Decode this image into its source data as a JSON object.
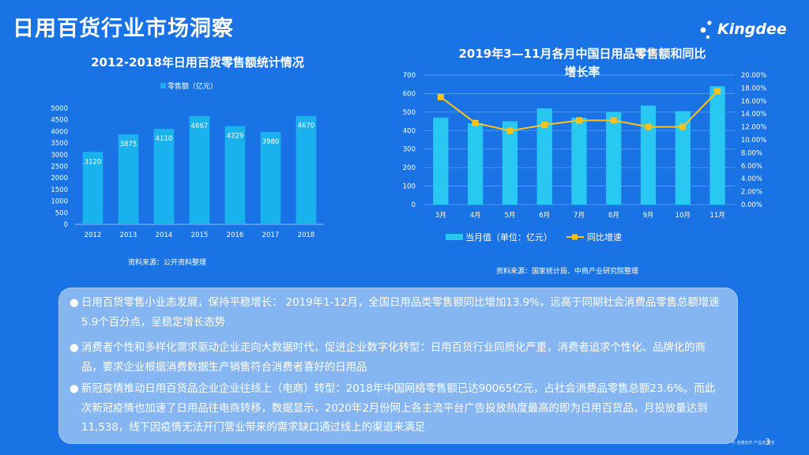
{
  "page": {
    "title": "日用百货行业市场洞察",
    "logo_text": "Kingdee",
    "page_number": "3",
    "footer_brand": "© 金蝶软件  产品部 财务"
  },
  "colors": {
    "background": "#1a73e4",
    "bar_left": "#19b2ee",
    "bar_right": "#29c8f2",
    "line": "#fdc21a",
    "grid": "#5d9ff0"
  },
  "chart_data": [
    {
      "type": "bar",
      "title": "2012-2018年日用百货零售额统计情况",
      "legend": "零售额（亿元）",
      "legend_position": "top",
      "categories": [
        "2012",
        "2013",
        "2014",
        "2015",
        "2016",
        "2017",
        "2018"
      ],
      "values": [
        3120,
        3875,
        4110,
        4667,
        4229,
        3980,
        4670
      ],
      "data_labels": [
        "3120",
        "3875",
        "4110",
        "4667",
        "4229",
        "3980",
        "4670"
      ],
      "ylim": [
        0,
        5000
      ],
      "yticks": [
        "0",
        "500",
        "1000",
        "1500",
        "2000",
        "2500",
        "3000",
        "3500",
        "4000",
        "4500",
        "5000"
      ],
      "grid": false,
      "source": "资料来源：公开资料整理"
    },
    {
      "type": "bar+line",
      "title_line1": "2019年3—11月各月中国日用品零售额和同比",
      "title_line2": "增长率",
      "categories": [
        "3月",
        "4月",
        "5月",
        "6月",
        "7月",
        "8月",
        "9月",
        "10月",
        "11月"
      ],
      "series": [
        {
          "name": "当月值（单位：亿元）",
          "type": "bar",
          "axis": "left",
          "values": [
            470,
            440,
            450,
            520,
            470,
            500,
            535,
            505,
            640
          ]
        },
        {
          "name": "同比增速",
          "type": "line",
          "axis": "right",
          "values": [
            16.6,
            12.6,
            11.4,
            12.3,
            13.0,
            13.0,
            12.0,
            12.0,
            17.5
          ]
        }
      ],
      "ylim_left": [
        0,
        700
      ],
      "yticks_left": [
        "0",
        "100",
        "200",
        "300",
        "400",
        "500",
        "600",
        "700"
      ],
      "ylim_right": [
        0,
        20
      ],
      "yticks_right": [
        "0.00%",
        "2.00%",
        "4.00%",
        "6.00%",
        "8.00%",
        "10.00%",
        "12.00%",
        "14.00%",
        "16.00%",
        "18.00%",
        "20.00%"
      ],
      "grid": true,
      "legend_position": "bottom",
      "source": "资料来源：国家统计局、中商产业研究院整理"
    }
  ],
  "bullets": [
    {
      "dot": "●",
      "text": "日用百货零售小业态发展，保持平稳增长： 2019年1-12月，全国日用品类零售额同比增加13.9%，远高于同期社会消费品零售总额增速5.9个百分点，呈稳定增长态势"
    },
    {
      "dot": "●",
      "text": "消费者个性和多样化需求驱动企业走向大数据时代，促进企业数字化转型：日用百货行业同质化严重，消费者追求个性化、品牌化的商品，要求企业根据消费数据生产销售符合消费者喜好的日用品"
    },
    {
      "dot": "●",
      "text": "新冠疫情推动日用百货品企业企业往线上（电商）转型：2018年中国网络零售额已达90065亿元，占社会消费品零售总额23.6%。而此次新冠疫情也加速了日用品往电商转移，数据显示，2020年2月份网上各主流平台广告投放热度最高的即为日用百货品，月投放量达到11,538，线下因疫情无法开门营业带来的需求缺口通过线上的渠道来满足"
    }
  ]
}
